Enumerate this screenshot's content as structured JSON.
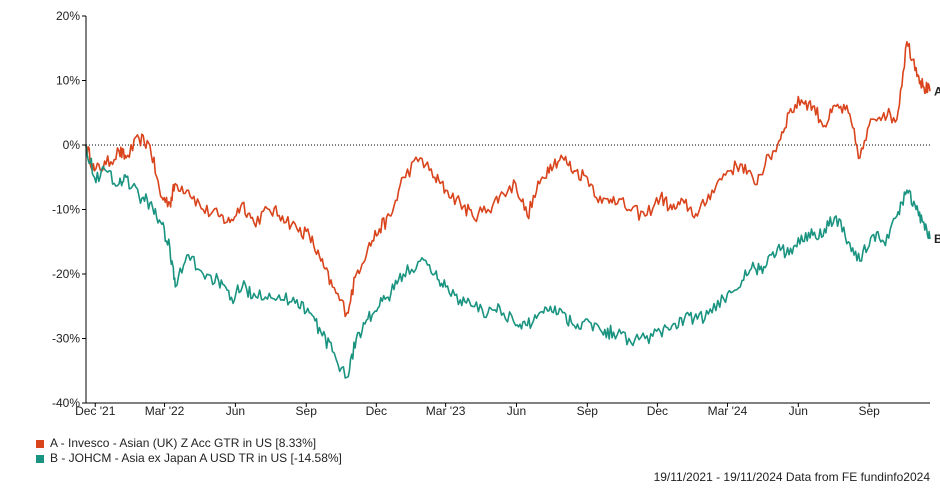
{
  "chart_data": {
    "type": "line",
    "x_range": [
      "19/11/2021",
      "19/11/2024"
    ],
    "ylim": [
      -40,
      20
    ],
    "y_ticks": [
      {
        "value": 20,
        "label": "20%"
      },
      {
        "value": 10,
        "label": "10%"
      },
      {
        "value": 0,
        "label": "0%"
      },
      {
        "value": -10,
        "label": "-10%"
      },
      {
        "value": -20,
        "label": "-20%"
      },
      {
        "value": -30,
        "label": "-30%"
      },
      {
        "value": -40,
        "label": "-40%"
      }
    ],
    "x_ticks": [
      {
        "date": "2021-12-01",
        "label": "Dec '21"
      },
      {
        "date": "2022-03-01",
        "label": "Mar '22"
      },
      {
        "date": "2022-06-01",
        "label": "Jun"
      },
      {
        "date": "2022-09-01",
        "label": "Sep"
      },
      {
        "date": "2022-12-01",
        "label": "Dec"
      },
      {
        "date": "2023-03-01",
        "label": "Mar '23"
      },
      {
        "date": "2023-06-01",
        "label": "Jun"
      },
      {
        "date": "2023-09-01",
        "label": "Sep"
      },
      {
        "date": "2023-12-01",
        "label": "Dec"
      },
      {
        "date": "2024-03-01",
        "label": "Mar '24"
      },
      {
        "date": "2024-06-01",
        "label": "Jun"
      },
      {
        "date": "2024-09-01",
        "label": "Sep"
      }
    ],
    "zero_line": "dotted",
    "series": [
      {
        "key": "A",
        "name": "A - Invesco - Asian (UK) Z Acc GTR in US [8.33%]",
        "color": "#d9441c",
        "x": [
          "2021-11-19",
          "2021-11-30",
          "2021-12-15",
          "2022-01-01",
          "2022-01-10",
          "2022-01-27",
          "2022-02-10",
          "2022-02-24",
          "2022-03-08",
          "2022-03-15",
          "2022-04-01",
          "2022-04-20",
          "2022-05-10",
          "2022-05-25",
          "2022-06-10",
          "2022-06-25",
          "2022-07-15",
          "2022-08-01",
          "2022-08-20",
          "2022-09-05",
          "2022-09-20",
          "2022-10-05",
          "2022-10-24",
          "2022-11-05",
          "2022-11-20",
          "2022-12-05",
          "2022-12-20",
          "2023-01-05",
          "2023-01-27",
          "2023-02-15",
          "2023-03-01",
          "2023-03-20",
          "2023-04-05",
          "2023-04-25",
          "2023-05-10",
          "2023-05-31",
          "2023-06-15",
          "2023-07-01",
          "2023-07-15",
          "2023-07-31",
          "2023-08-15",
          "2023-09-01",
          "2023-09-20",
          "2023-10-05",
          "2023-10-25",
          "2023-11-15",
          "2023-12-05",
          "2023-12-20",
          "2024-01-05",
          "2024-01-22",
          "2024-02-10",
          "2024-03-01",
          "2024-03-20",
          "2024-04-05",
          "2024-04-19",
          "2024-05-05",
          "2024-05-20",
          "2024-06-05",
          "2024-06-20",
          "2024-07-05",
          "2024-07-20",
          "2024-08-05",
          "2024-08-20",
          "2024-09-05",
          "2024-09-20",
          "2024-10-07",
          "2024-10-20",
          "2024-11-01",
          "2024-11-10",
          "2024-11-19"
        ],
        "values": [
          0,
          -4,
          -3,
          -1,
          -2,
          1,
          0,
          -8,
          -9,
          -6,
          -7,
          -10,
          -11,
          -12,
          -9,
          -12,
          -10,
          -11,
          -13,
          -14,
          -18,
          -22,
          -26,
          -20,
          -16,
          -13,
          -11,
          -5,
          -2,
          -5,
          -7,
          -9,
          -11,
          -10,
          -8,
          -6,
          -11,
          -6,
          -3,
          -2,
          -4,
          -5,
          -9,
          -8,
          -10,
          -11,
          -8,
          -10,
          -9,
          -11,
          -7,
          -4,
          -3,
          -6,
          -3,
          0,
          5,
          7,
          6,
          3,
          6,
          5,
          -2,
          4,
          5,
          4,
          16,
          12,
          9,
          8.33
        ]
      },
      {
        "key": "B",
        "name": "B - JOHCM - Asia ex Japan A USD TR in US [-14.58%]",
        "color": "#1a9480",
        "x": [
          "2021-11-19",
          "2021-11-30",
          "2021-12-15",
          "2022-01-01",
          "2022-01-10",
          "2022-01-27",
          "2022-02-10",
          "2022-02-24",
          "2022-03-08",
          "2022-03-15",
          "2022-04-01",
          "2022-04-20",
          "2022-05-10",
          "2022-05-25",
          "2022-06-10",
          "2022-06-25",
          "2022-07-15",
          "2022-08-01",
          "2022-08-20",
          "2022-09-05",
          "2022-09-20",
          "2022-10-05",
          "2022-10-24",
          "2022-11-05",
          "2022-11-20",
          "2022-12-05",
          "2022-12-20",
          "2023-01-05",
          "2023-01-27",
          "2023-02-15",
          "2023-03-01",
          "2023-03-20",
          "2023-04-05",
          "2023-04-25",
          "2023-05-10",
          "2023-05-31",
          "2023-06-15",
          "2023-07-01",
          "2023-07-15",
          "2023-07-31",
          "2023-08-15",
          "2023-09-01",
          "2023-09-20",
          "2023-10-05",
          "2023-10-25",
          "2023-11-15",
          "2023-12-05",
          "2023-12-20",
          "2024-01-05",
          "2024-01-22",
          "2024-02-10",
          "2024-03-01",
          "2024-03-20",
          "2024-04-05",
          "2024-04-19",
          "2024-05-05",
          "2024-05-20",
          "2024-06-05",
          "2024-06-20",
          "2024-07-05",
          "2024-07-20",
          "2024-08-05",
          "2024-08-20",
          "2024-09-05",
          "2024-09-20",
          "2024-10-07",
          "2024-10-20",
          "2024-11-01",
          "2024-11-10",
          "2024-11-19"
        ],
        "values": [
          0,
          -5,
          -4,
          -6,
          -5,
          -8,
          -9,
          -12,
          -16,
          -22,
          -17,
          -20,
          -21,
          -24,
          -22,
          -23,
          -23,
          -24,
          -24,
          -26,
          -29,
          -32,
          -36,
          -30,
          -27,
          -25,
          -23,
          -20,
          -18,
          -20,
          -22,
          -24,
          -25,
          -26,
          -25,
          -28,
          -28,
          -26,
          -25,
          -26,
          -28,
          -27,
          -29,
          -29,
          -30,
          -30,
          -29,
          -28,
          -27,
          -27,
          -26,
          -23,
          -21,
          -19,
          -19,
          -16,
          -17,
          -14,
          -14,
          -13,
          -11,
          -15,
          -18,
          -14,
          -15,
          -11,
          -7,
          -10,
          -12,
          -14.58
        ]
      }
    ],
    "footer": "19/11/2021 - 19/11/2024 Data from FE fundinfo2024"
  }
}
